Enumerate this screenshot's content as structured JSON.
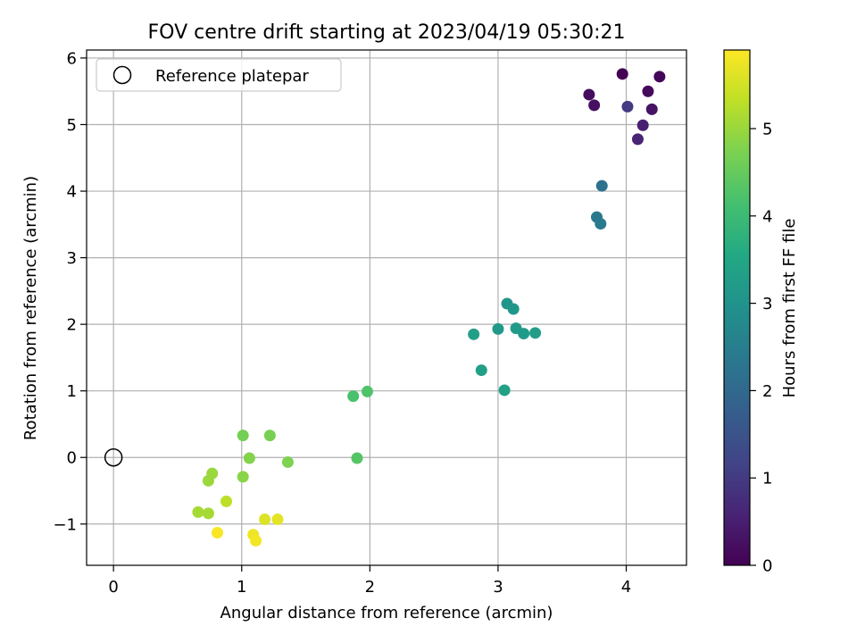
{
  "chart_data": {
    "type": "scatter",
    "title": "FOV centre drift starting at 2023/04/19 05:30:21",
    "xlabel": "Angular distance from reference (arcmin)",
    "ylabel": "Rotation from reference (arcmin)",
    "xlim": [
      -0.21,
      4.47
    ],
    "ylim": [
      -1.62,
      6.12
    ],
    "xticks": [
      0,
      1,
      2,
      3,
      4
    ],
    "yticks": [
      -1,
      0,
      1,
      2,
      3,
      4,
      5,
      6
    ],
    "grid": true,
    "legend": {
      "position": "top-left",
      "entries": [
        "Reference platepar"
      ]
    },
    "reference_point": {
      "x": 0,
      "y": 0
    },
    "colorbar": {
      "label": "Hours from first FF file",
      "colormap": "viridis",
      "range": [
        0,
        5.9
      ],
      "ticks": [
        0,
        1,
        2,
        3,
        4,
        5
      ]
    },
    "points": [
      {
        "x": 3.97,
        "y": 5.76,
        "t": 0.0
      },
      {
        "x": 4.26,
        "y": 5.72,
        "t": 0.1
      },
      {
        "x": 4.17,
        "y": 5.5,
        "t": 0.15
      },
      {
        "x": 3.71,
        "y": 5.45,
        "t": 0.2
      },
      {
        "x": 3.75,
        "y": 5.29,
        "t": 0.25
      },
      {
        "x": 4.2,
        "y": 5.23,
        "t": 0.3
      },
      {
        "x": 4.13,
        "y": 4.99,
        "t": 0.5
      },
      {
        "x": 4.09,
        "y": 4.78,
        "t": 0.6
      },
      {
        "x": 4.01,
        "y": 5.27,
        "t": 1.0
      },
      {
        "x": 3.81,
        "y": 4.08,
        "t": 2.2
      },
      {
        "x": 3.77,
        "y": 3.61,
        "t": 2.35
      },
      {
        "x": 3.8,
        "y": 3.51,
        "t": 2.4
      },
      {
        "x": 3.07,
        "y": 2.31,
        "t": 3.05
      },
      {
        "x": 3.12,
        "y": 2.23,
        "t": 3.1
      },
      {
        "x": 3.0,
        "y": 1.93,
        "t": 3.15
      },
      {
        "x": 3.14,
        "y": 1.94,
        "t": 3.2
      },
      {
        "x": 3.2,
        "y": 1.86,
        "t": 3.2
      },
      {
        "x": 3.29,
        "y": 1.87,
        "t": 3.25
      },
      {
        "x": 2.81,
        "y": 1.85,
        "t": 3.3
      },
      {
        "x": 2.87,
        "y": 1.31,
        "t": 3.3
      },
      {
        "x": 3.05,
        "y": 1.01,
        "t": 3.35
      },
      {
        "x": 1.87,
        "y": 0.92,
        "t": 4.2
      },
      {
        "x": 1.98,
        "y": 0.99,
        "t": 4.25
      },
      {
        "x": 1.9,
        "y": -0.01,
        "t": 4.3
      },
      {
        "x": 1.01,
        "y": 0.33,
        "t": 4.65
      },
      {
        "x": 1.22,
        "y": 0.33,
        "t": 4.7
      },
      {
        "x": 1.36,
        "y": -0.07,
        "t": 4.75
      },
      {
        "x": 1.06,
        "y": -0.01,
        "t": 4.8
      },
      {
        "x": 1.01,
        "y": -0.29,
        "t": 4.85
      },
      {
        "x": 0.77,
        "y": -0.24,
        "t": 5.0
      },
      {
        "x": 0.74,
        "y": -0.35,
        "t": 5.0
      },
      {
        "x": 0.66,
        "y": -0.82,
        "t": 5.1
      },
      {
        "x": 0.74,
        "y": -0.84,
        "t": 5.1
      },
      {
        "x": 0.88,
        "y": -0.66,
        "t": 5.3
      },
      {
        "x": 1.18,
        "y": -0.93,
        "t": 5.6
      },
      {
        "x": 1.28,
        "y": -0.93,
        "t": 5.65
      },
      {
        "x": 1.09,
        "y": -1.16,
        "t": 5.75
      },
      {
        "x": 1.11,
        "y": -1.25,
        "t": 5.8
      },
      {
        "x": 0.81,
        "y": -1.13,
        "t": 5.85
      }
    ]
  }
}
